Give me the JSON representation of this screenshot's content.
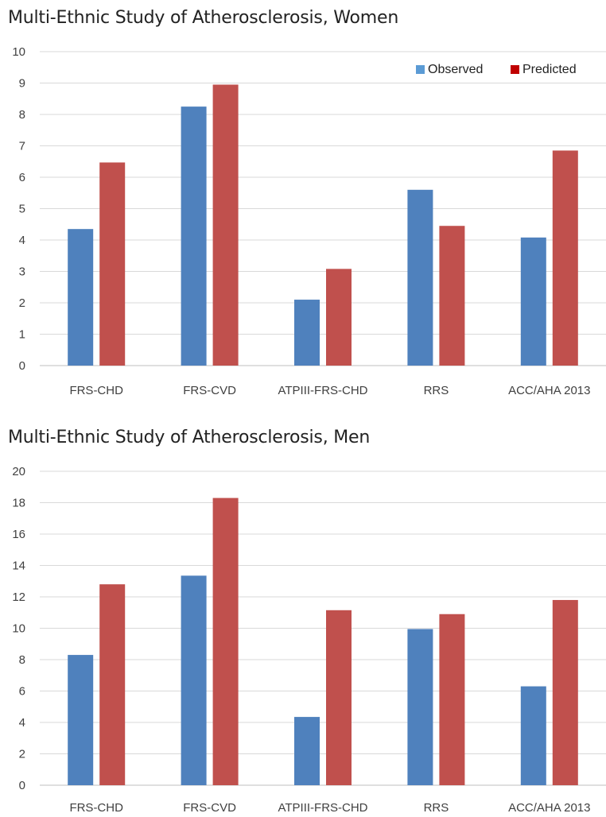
{
  "colors": {
    "observed": "#4f81bd",
    "predicted": "#c0504d",
    "legend_observed": "#5b9bd5",
    "legend_predicted": "#c00000"
  },
  "chart_data": [
    {
      "type": "bar",
      "title": "Multi-Ethnic Study of Atherosclerosis, Women",
      "categories": [
        "FRS-CHD",
        "FRS-CVD",
        "ATPIII-FRS-CHD",
        "RRS",
        "ACC/AHA 2013"
      ],
      "series": [
        {
          "name": "Observed",
          "values": [
            4.35,
            8.25,
            2.1,
            5.6,
            4.08
          ]
        },
        {
          "name": "Predicted",
          "values": [
            6.47,
            8.95,
            3.08,
            4.45,
            6.85
          ]
        }
      ],
      "ylim": [
        0,
        10
      ],
      "yticks": [
        "0",
        "1",
        "2",
        "3",
        "4",
        "5",
        "6",
        "7",
        "8",
        "9",
        "10"
      ],
      "grid": true,
      "legend": "top-right"
    },
    {
      "type": "bar",
      "title": "Multi-Ethnic Study of Atherosclerosis, Men",
      "categories": [
        "FRS-CHD",
        "FRS-CVD",
        "ATPIII-FRS-CHD",
        "RRS",
        "ACC/AHA 2013"
      ],
      "series": [
        {
          "name": "Observed",
          "values": [
            8.3,
            13.35,
            4.35,
            9.95,
            6.3
          ]
        },
        {
          "name": "Predicted",
          "values": [
            12.8,
            18.3,
            11.15,
            10.9,
            11.8
          ]
        }
      ],
      "ylim": [
        0,
        20
      ],
      "yticks": [
        "0",
        "2",
        "4",
        "6",
        "8",
        "10",
        "12",
        "14",
        "16",
        "18",
        "20"
      ],
      "grid": true,
      "legend": "none"
    }
  ]
}
